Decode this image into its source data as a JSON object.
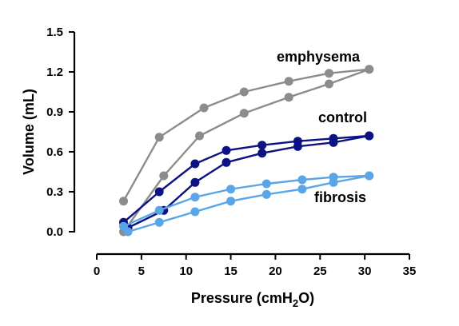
{
  "chart_data": {
    "type": "line",
    "title": "",
    "xlabel": "Pressure (cmH",
    "xlabel_sub": "2",
    "xlabel_end": "O)",
    "ylabel": "Volume (mL)",
    "xlim": [
      0,
      35
    ],
    "ylim": [
      0,
      1.5
    ],
    "x_ticks": [
      0,
      5,
      10,
      15,
      20,
      25,
      30,
      35
    ],
    "x_tick_labels": [
      "0",
      "5",
      "10",
      "15",
      "20",
      "25",
      "30",
      "35"
    ],
    "y_ticks": [
      0,
      0.3,
      0.6,
      0.9,
      1.2,
      1.5
    ],
    "y_tick_labels": [
      "0.0",
      "0.3",
      "0.6",
      "0.9",
      "1.2",
      "1.5"
    ],
    "grid": false,
    "series": [
      {
        "name": "emphysema",
        "color": "#8c8c8c",
        "inflation": [
          [
            3,
            0
          ],
          [
            7.5,
            0.42
          ],
          [
            11.5,
            0.72
          ],
          [
            16.5,
            0.89
          ],
          [
            21.5,
            1.01
          ],
          [
            26,
            1.11
          ],
          [
            30.5,
            1.22
          ]
        ],
        "deflation": [
          [
            3,
            0.23
          ],
          [
            7,
            0.71
          ],
          [
            12,
            0.93
          ],
          [
            16.5,
            1.05
          ],
          [
            21.5,
            1.13
          ],
          [
            26,
            1.19
          ],
          [
            30.5,
            1.22
          ]
        ]
      },
      {
        "name": "control",
        "color": "#0d1282",
        "inflation": [
          [
            3.5,
            0.03
          ],
          [
            7.5,
            0.16
          ],
          [
            11,
            0.37
          ],
          [
            14.5,
            0.52
          ],
          [
            18.5,
            0.59
          ],
          [
            22.5,
            0.64
          ],
          [
            26.5,
            0.67
          ],
          [
            30.5,
            0.72
          ]
        ],
        "deflation": [
          [
            3,
            0.07
          ],
          [
            7,
            0.3
          ],
          [
            11,
            0.51
          ],
          [
            14.5,
            0.61
          ],
          [
            18.5,
            0.65
          ],
          [
            22.5,
            0.68
          ],
          [
            26.5,
            0.7
          ],
          [
            30.5,
            0.72
          ]
        ]
      },
      {
        "name": "fibrosis",
        "color": "#5aa5e6",
        "inflation": [
          [
            3.5,
            0
          ],
          [
            7,
            0.07
          ],
          [
            11,
            0.15
          ],
          [
            15,
            0.23
          ],
          [
            19,
            0.28
          ],
          [
            23,
            0.32
          ],
          [
            26.5,
            0.37
          ],
          [
            30.5,
            0.42
          ]
        ],
        "deflation": [
          [
            3,
            0.04
          ],
          [
            7,
            0.16
          ],
          [
            11,
            0.26
          ],
          [
            15,
            0.32
          ],
          [
            19,
            0.36
          ],
          [
            23,
            0.39
          ],
          [
            26.5,
            0.41
          ],
          [
            30.5,
            0.42
          ]
        ]
      }
    ]
  }
}
